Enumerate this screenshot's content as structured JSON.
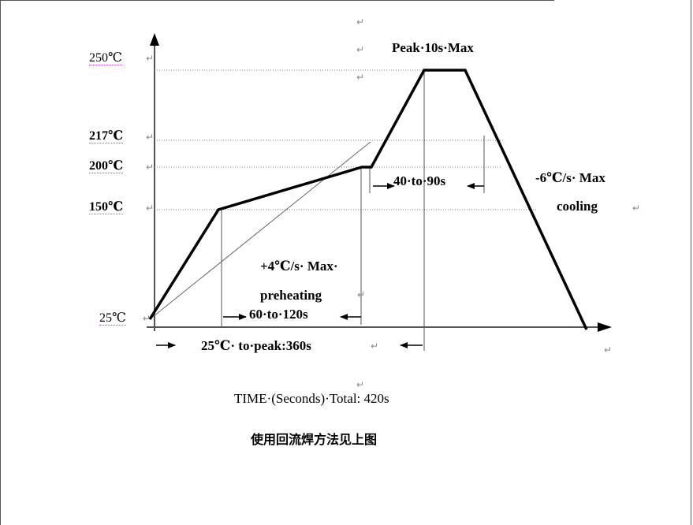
{
  "diagram": {
    "y_labels": [
      "250℃",
      "217℃",
      "200℃",
      "150℃",
      "25℃"
    ],
    "peak_label": "Peak·10s·Max",
    "cooling_rate": "-6℃/s· Max",
    "cooling_word": "cooling",
    "interval_40_90": "40·to·90s",
    "preheat_rate": "+4℃/s· Max·",
    "preheat_word": "preheating",
    "interval_60_120": "60·to·120s",
    "to_peak": "25℃· to·peak:360s",
    "time_caption": "TIME·(Seconds)·Total: 420s",
    "cn_caption": "使用回流焊方法见上图"
  },
  "paragraph_mark": "↵"
}
